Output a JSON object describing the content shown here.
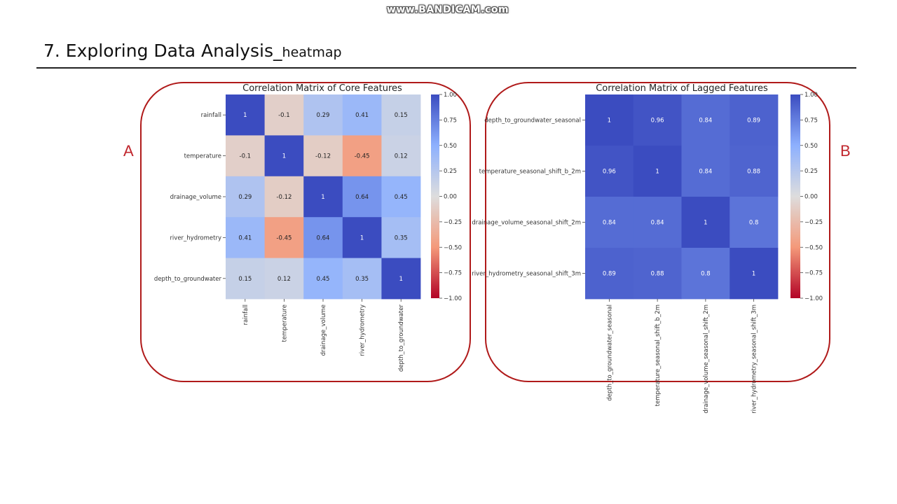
{
  "watermark": "www.BANDICAM.com",
  "slide": {
    "title_main": "7. Exploring Data Analysis_",
    "title_sub": "heatmap"
  },
  "panel_labels": {
    "a": "A",
    "b": "B"
  },
  "colors": {
    "frame": "#b01a1a",
    "label": "#c0262d"
  },
  "chart_data": [
    {
      "type": "heatmap",
      "title": "Correlation Matrix of Core Features",
      "rows": [
        "rainfall",
        "temperature",
        "drainage_volume",
        "river_hydrometry",
        "depth_to_groundwater"
      ],
      "cols": [
        "rainfall",
        "temperature",
        "drainage_volume",
        "river_hydrometry",
        "depth_to_groundwater"
      ],
      "values": [
        [
          1,
          -0.1,
          0.29,
          0.41,
          0.15
        ],
        [
          -0.1,
          1,
          -0.12,
          -0.45,
          0.12
        ],
        [
          0.29,
          -0.12,
          1,
          0.64,
          0.45
        ],
        [
          0.41,
          -0.45,
          0.64,
          1,
          0.35
        ],
        [
          0.15,
          0.12,
          0.45,
          0.35,
          1
        ]
      ],
      "colormap": "coolwarm",
      "vmin": -1,
      "vmax": 1,
      "colorbar_ticks": [
        "1.00",
        "0.75",
        "0.50",
        "0.25",
        "0.00",
        "−0.25",
        "−0.50",
        "−0.75",
        "−1.00"
      ]
    },
    {
      "type": "heatmap",
      "title": "Correlation Matrix of Lagged Features",
      "rows": [
        "depth_to_groundwater_seasonal",
        "temperature_seasonal_shift_b_2m",
        "drainage_volume_seasonal_shift_2m",
        "river_hydrometry_seasonal_shift_3m"
      ],
      "cols": [
        "depth_to_groundwater_seasonal",
        "temperature_seasonal_shift_b_2m",
        "drainage_volume_seasonal_shift_2m",
        "river_hydrometry_seasonal_shift_3m"
      ],
      "values": [
        [
          1,
          0.96,
          0.84,
          0.89
        ],
        [
          0.96,
          1,
          0.84,
          0.88
        ],
        [
          0.84,
          0.84,
          1,
          0.8
        ],
        [
          0.89,
          0.88,
          0.8,
          1
        ]
      ],
      "colormap": "coolwarm",
      "vmin": -1,
      "vmax": 1,
      "colorbar_ticks": [
        "1.00",
        "0.75",
        "0.50",
        "0.25",
        "0.00",
        "−0.25",
        "−0.50",
        "−0.75",
        "−1.00"
      ]
    }
  ]
}
